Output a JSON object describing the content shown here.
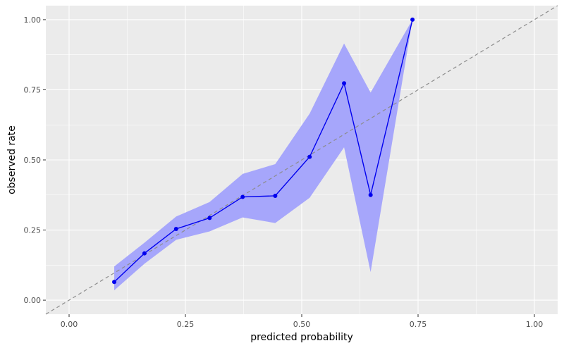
{
  "chart_data": {
    "type": "line",
    "xlabel": "predicted probability",
    "ylabel": "observed rate",
    "xlim": [
      -0.05,
      1.05
    ],
    "ylim": [
      -0.05,
      1.05
    ],
    "x_ticks": [
      0.0,
      0.25,
      0.5,
      0.75,
      1.0
    ],
    "x_tick_labels": [
      "0.00",
      "0.25",
      "0.50",
      "0.75",
      "1.00"
    ],
    "y_ticks": [
      0.0,
      0.25,
      0.5,
      0.75,
      1.0
    ],
    "y_tick_labels": [
      "0.00",
      "0.25",
      "0.50",
      "0.75",
      "1.00"
    ],
    "grid": true,
    "reference_line": {
      "x": [
        -0.05,
        1.05
      ],
      "y": [
        -0.05,
        1.05
      ],
      "style": "dashed"
    },
    "series": [
      {
        "x": [
          0.097,
          0.162,
          0.23,
          0.302,
          0.373,
          0.443,
          0.517,
          0.591,
          0.648,
          0.738
        ],
        "y": [
          0.065,
          0.167,
          0.254,
          0.293,
          0.368,
          0.372,
          0.511,
          0.773,
          0.375,
          1.0
        ],
        "lower": [
          0.035,
          0.13,
          0.215,
          0.245,
          0.295,
          0.275,
          0.365,
          0.545,
          0.1,
          1.0
        ],
        "upper": [
          0.12,
          0.205,
          0.298,
          0.35,
          0.45,
          0.485,
          0.665,
          0.915,
          0.74,
          1.0
        ]
      }
    ]
  },
  "colors": {
    "panel_background": "#ebebeb",
    "grid_major": "#ffffff",
    "line": "#0000ee",
    "band": "#a6a6fb",
    "reference": "#8c8c8c"
  }
}
